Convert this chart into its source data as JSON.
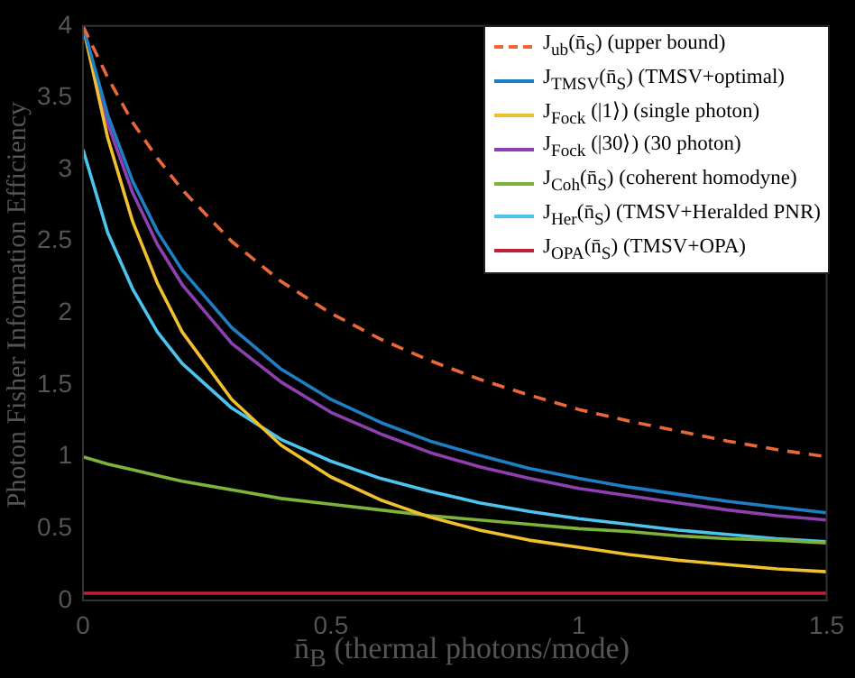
{
  "chart_data": {
    "type": "line",
    "xlabel": "n̄$_{B}$ (thermal photons/mode)",
    "ylabel": "Photon Fisher Information Efficiency",
    "x": [
      0,
      0.05,
      0.1,
      0.15,
      0.2,
      0.3,
      0.4,
      0.5,
      0.6,
      0.7,
      0.8,
      0.9,
      1.0,
      1.1,
      1.2,
      1.3,
      1.4,
      1.5
    ],
    "xlim": [
      0,
      1.5
    ],
    "xticks": [
      0,
      0.5,
      1,
      1.5
    ],
    "ylim": [
      0,
      4
    ],
    "yticks": [
      0,
      0.5,
      1,
      1.5,
      2,
      2.5,
      3,
      3.5,
      4
    ],
    "grid": false,
    "legend": "top right",
    "marker": "none",
    "series": [
      {
        "name": "J$_{ub}$(n̄$_{S}$) (upper bound)",
        "color": "#e8683a",
        "line_style": "dashed",
        "values": [
          4,
          3.64,
          3.33,
          3.08,
          2.86,
          2.5,
          2.22,
          2,
          1.82,
          1.67,
          1.54,
          1.43,
          1.33,
          1.25,
          1.18,
          1.11,
          1.05,
          1
        ]
      },
      {
        "name": "J$_{TMSV}$(n̄$_{S}$) (TMSV+optimal)",
        "color": "#1f7fc4",
        "values": [
          4,
          3.38,
          2.92,
          2.57,
          2.3,
          1.9,
          1.61,
          1.4,
          1.24,
          1.11,
          1.01,
          0.92,
          0.85,
          0.79,
          0.74,
          0.69,
          0.65,
          0.61
        ]
      },
      {
        "name": "J$_{Fock}$ (|1⟩) (single photon)",
        "color": "#f0c030",
        "values": [
          4,
          3.22,
          2.64,
          2.21,
          1.87,
          1.4,
          1.08,
          0.86,
          0.7,
          0.58,
          0.49,
          0.42,
          0.37,
          0.32,
          0.28,
          0.25,
          0.22,
          0.2
        ]
      },
      {
        "name": "J$_{Fock}$ (|30⟩) (30 photon)",
        "color": "#8e3fb0",
        "values": [
          4,
          3.32,
          2.84,
          2.48,
          2.2,
          1.79,
          1.52,
          1.31,
          1.16,
          1.03,
          0.93,
          0.85,
          0.78,
          0.73,
          0.68,
          0.63,
          0.59,
          0.56
        ]
      },
      {
        "name": "J$_{Coh}$(n̄$_{S}$) (coherent homodyne)",
        "color": "#7db33a",
        "values": [
          1,
          0.95,
          0.91,
          0.87,
          0.83,
          0.77,
          0.71,
          0.67,
          0.63,
          0.59,
          0.56,
          0.53,
          0.5,
          0.48,
          0.45,
          0.43,
          0.42,
          0.4
        ]
      },
      {
        "name": "J$_{Her}$(n̄$_{S}$) (TMSV+Heralded PNR)",
        "color": "#4cc4ee",
        "values": [
          3.14,
          2.56,
          2.17,
          1.87,
          1.65,
          1.34,
          1.12,
          0.97,
          0.85,
          0.76,
          0.68,
          0.62,
          0.57,
          0.53,
          0.49,
          0.46,
          0.43,
          0.41
        ]
      },
      {
        "name": "J$_{OPA}$(n̄$_{S}$) (TMSV+OPA)",
        "color": "#c0203a",
        "values": [
          0.05,
          0.05,
          0.05,
          0.05,
          0.05,
          0.05,
          0.05,
          0.05,
          0.05,
          0.05,
          0.05,
          0.05,
          0.05,
          0.05,
          0.05,
          0.05,
          0.05,
          0.05
        ]
      }
    ]
  }
}
